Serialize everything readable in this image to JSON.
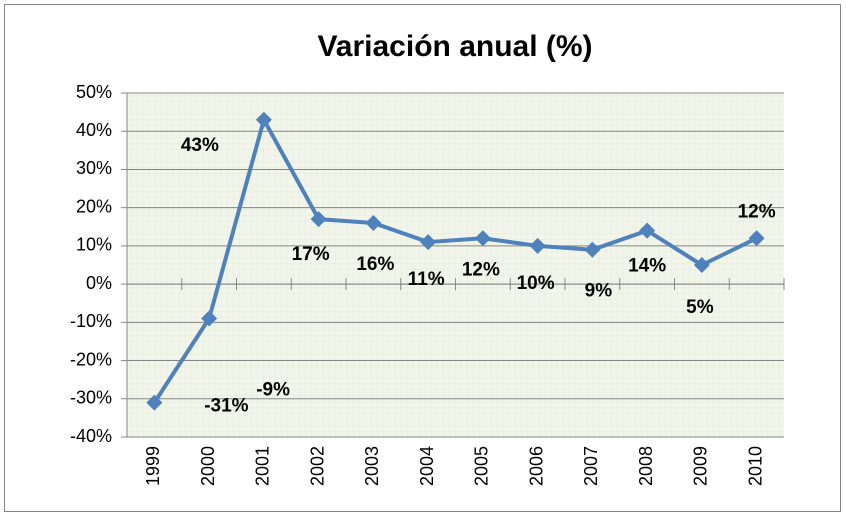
{
  "chart_data": {
    "type": "line",
    "title": "Variación anual (%)",
    "categories": [
      "1999",
      "2000",
      "2001",
      "2002",
      "2003",
      "2004",
      "2005",
      "2006",
      "2007",
      "2008",
      "2009",
      "2010"
    ],
    "values": [
      -31,
      -9,
      43,
      17,
      16,
      11,
      12,
      10,
      9,
      14,
      5,
      12
    ],
    "value_labels": [
      "-31%",
      "-9%",
      "43%",
      "17%",
      "16%",
      "11%",
      "12%",
      "10%",
      "9%",
      "14%",
      "5%",
      "12%"
    ],
    "color": "#4f81bd",
    "ylim": [
      -40,
      50
    ],
    "yticks": [
      {
        "value": -40,
        "label": "-40%"
      },
      {
        "value": -30,
        "label": "-30%"
      },
      {
        "value": -20,
        "label": "-20%"
      },
      {
        "value": -10,
        "label": "-10%"
      },
      {
        "value": 0,
        "label": "0%"
      },
      {
        "value": 10,
        "label": "10%"
      },
      {
        "value": 20,
        "label": "20%"
      },
      {
        "value": 30,
        "label": "30%"
      },
      {
        "value": 40,
        "label": "40%"
      },
      {
        "value": 50,
        "label": "50%"
      }
    ],
    "grid": true
  }
}
